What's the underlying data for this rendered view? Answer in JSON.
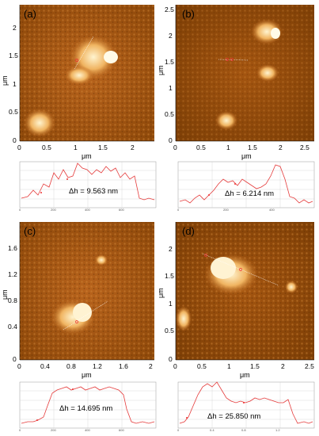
{
  "panels": [
    {
      "label": "(a)",
      "dh": "Δh = 9.563 nm",
      "unit": "μm",
      "xticks": [
        "0",
        "0.5",
        "1",
        "1.5",
        "2"
      ],
      "yticks": [
        "0",
        "0.5",
        "1",
        "1.5",
        "2"
      ],
      "profile_xticks": [
        "0",
        "200",
        "400",
        "600"
      ]
    },
    {
      "label": "(b)",
      "dh": "Δh = 6.214 nm",
      "unit": "μm",
      "xticks": [
        "0",
        "0.5",
        "1",
        "1.5",
        "2",
        "2.5"
      ],
      "yticks": [
        "0",
        "0.5",
        "1",
        "1.5",
        "2",
        "2.5"
      ],
      "profile_xticks": [
        "0",
        "200",
        "400"
      ]
    },
    {
      "label": "(c)",
      "dh": "Δh = 14.695 nm",
      "unit": "μm",
      "xticks": [
        "0",
        "0.4",
        "0.8",
        "1.2",
        "1.6",
        "2"
      ],
      "yticks": [
        "0",
        "0.4",
        "0.8",
        "1.2",
        "1.6"
      ],
      "profile_xticks": [
        "0",
        "200",
        "400",
        "600"
      ]
    },
    {
      "label": "(d)",
      "dh": "Δh = 25.850 nm",
      "unit": "μm",
      "xticks": [
        "0",
        "0.5",
        "1",
        "1.5",
        "2",
        "2.5"
      ],
      "yticks": [
        "0",
        "0.5",
        "1",
        "1.5",
        "2"
      ],
      "profile_xticks": [
        "0",
        "0.4",
        "0.8",
        "1.2"
      ]
    }
  ],
  "colors": {
    "afm_dark": "#6b3400",
    "afm_mid": "#b8631c",
    "afm_light": "#ffe2a6",
    "profile_line": "#e53b3b",
    "grid": "#cfcfcf"
  }
}
